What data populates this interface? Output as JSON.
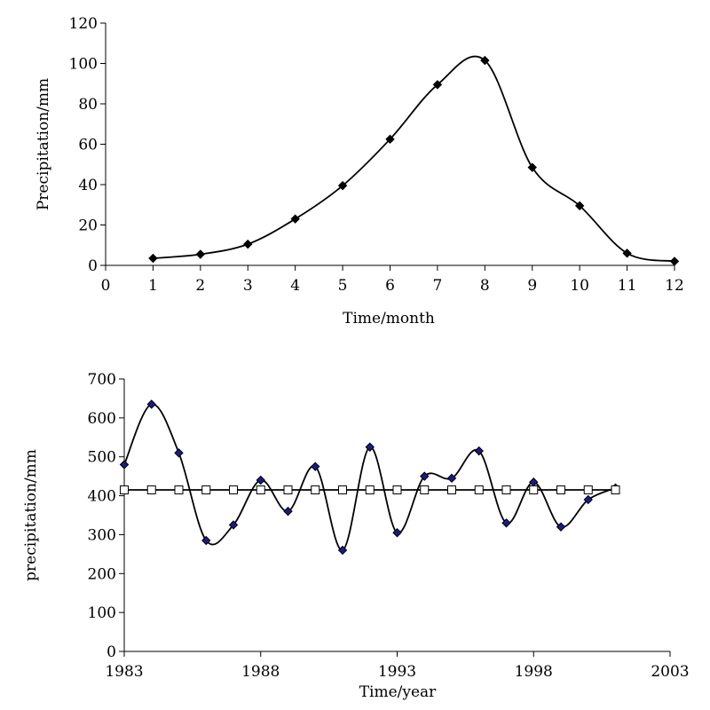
{
  "chart_data": [
    {
      "type": "line",
      "title": "",
      "xlabel": "Time/month",
      "ylabel": "Precipitation/mm",
      "xlim": [
        0,
        12
      ],
      "ylim": [
        0,
        120
      ],
      "xticks": [
        "0",
        "1",
        "2",
        "3",
        "4",
        "5",
        "6",
        "7",
        "8",
        "9",
        "10",
        "11",
        "12"
      ],
      "yticks": [
        "0",
        "20",
        "40",
        "60",
        "80",
        "100",
        "120"
      ],
      "grid": false,
      "legend": "none",
      "smooth": true,
      "series": [
        {
          "marker": "diamond",
          "color": "#000000",
          "x": [
            1,
            2,
            3,
            4,
            5,
            6,
            7,
            8,
            9,
            10,
            11,
            12
          ],
          "y": [
            3.5,
            5.5,
            10.5,
            23,
            39.5,
            62.5,
            89.5,
            101.5,
            48.5,
            29.5,
            6,
            2
          ]
        }
      ]
    },
    {
      "type": "line",
      "title": "",
      "xlabel": "Time/year",
      "ylabel": "precipitation/mm",
      "xlim": [
        1983,
        2003
      ],
      "ylim": [
        0,
        700
      ],
      "xticks": [
        "1983",
        "1988",
        "1993",
        "1998",
        "2003"
      ],
      "yticks": [
        "0",
        "100",
        "200",
        "300",
        "400",
        "500",
        "600",
        "700"
      ],
      "grid": false,
      "legend": "none",
      "smooth": true,
      "series": [
        {
          "marker": "diamond",
          "color": "#000000",
          "marker_fill": "#1a1a8c",
          "x": [
            1983,
            1984,
            1985,
            1986,
            1987,
            1988,
            1989,
            1990,
            1991,
            1992,
            1993,
            1994,
            1995,
            1996,
            1997,
            1998,
            1999,
            2000,
            2001
          ],
          "y": [
            480,
            635,
            510,
            285,
            325,
            440,
            360,
            475,
            260,
            525,
            305,
            450,
            445,
            515,
            330,
            435,
            320,
            390,
            420
          ]
        },
        {
          "marker": "square",
          "color": "#000000",
          "marker_fill": "#ffffff",
          "x": [
            1983,
            1984,
            1985,
            1986,
            1987,
            1988,
            1989,
            1990,
            1991,
            1992,
            1993,
            1994,
            1995,
            1996,
            1997,
            1998,
            1999,
            2000,
            2001
          ],
          "y": [
            415,
            415,
            415,
            415,
            415,
            415,
            415,
            415,
            415,
            415,
            415,
            415,
            415,
            415,
            415,
            415,
            415,
            415,
            415
          ]
        }
      ]
    }
  ]
}
